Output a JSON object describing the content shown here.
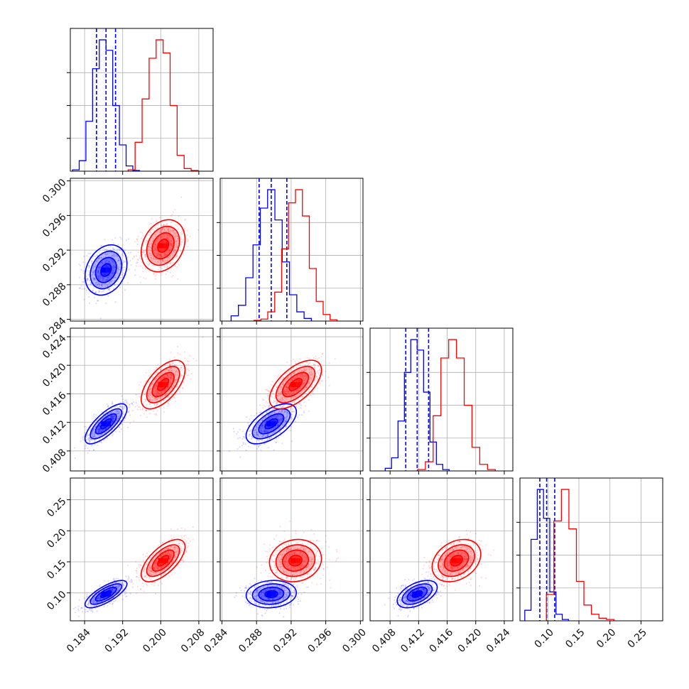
{
  "colors": {
    "blue": "#0000ff",
    "red": "#ff0000",
    "grid": "#b0b0b0",
    "frame": "#000000"
  },
  "chart_data": {
    "type": "corner",
    "parameters": [
      {
        "range": [
          0.181,
          0.211
        ],
        "ticks": [
          "0.184",
          "0.192",
          "0.200",
          "0.208"
        ]
      },
      {
        "range": [
          0.2838,
          0.3003
        ],
        "ticks": [
          "0.284",
          "0.288",
          "0.292",
          "0.296",
          "0.300"
        ]
      },
      {
        "range": [
          0.4052,
          0.4252
        ],
        "ticks": [
          "0.408",
          "0.412",
          "0.416",
          "0.420",
          "0.424"
        ]
      },
      {
        "range": [
          0.055,
          0.285
        ],
        "ticks": [
          "0.10",
          "0.15",
          "0.20",
          "0.25"
        ]
      }
    ],
    "y_axis_ticks": {
      "1": [
        "0.284",
        "0.288",
        "0.292",
        "0.296",
        "0.300"
      ],
      "2": [
        "0.408",
        "0.412",
        "0.416",
        "0.420",
        "0.424"
      ],
      "3": [
        "0.10",
        "0.15",
        "0.20",
        "0.25"
      ]
    },
    "series": [
      {
        "color": "blue",
        "means": [
          0.1885,
          0.2897,
          0.4118,
          0.098
        ],
        "stds": [
          0.0022,
          0.00145,
          0.0014,
          0.011
        ],
        "correlations": [
          [
            0,
            1,
            0.25
          ],
          [
            0,
            2,
            0.75
          ],
          [
            0,
            3,
            0.75
          ],
          [
            1,
            2,
            0.6
          ],
          [
            1,
            3,
            0.1
          ],
          [
            2,
            3,
            0.5
          ]
        ],
        "quantile_lines": {
          "0": [
            0.1865,
            0.1885,
            0.1905
          ],
          "1": [
            0.2883,
            0.2897,
            0.2915
          ],
          "2": [
            0.4102,
            0.4118,
            0.4134
          ],
          "3": [
            0.087,
            0.098,
            0.111
          ]
        },
        "histograms": {
          "0": [
            0.01,
            0.08,
            0.38,
            0.78,
            1.0,
            0.92,
            0.5,
            0.2,
            0.04,
            0.005
          ],
          "1": [
            0.04,
            0.12,
            0.33,
            0.58,
            0.86,
            1.0,
            0.77,
            0.45,
            0.2,
            0.07,
            0.02
          ],
          "2": [
            0.02,
            0.1,
            0.38,
            0.75,
            1.0,
            0.92,
            0.6,
            0.22,
            0.05,
            0.01
          ],
          "3": [
            0.08,
            0.62,
            1.0,
            0.78,
            0.22,
            0.05,
            0.01
          ]
        }
      },
      {
        "color": "red",
        "means": [
          0.2005,
          0.2925,
          0.4173,
          0.152
        ],
        "stds": [
          0.0023,
          0.0015,
          0.0017,
          0.017
        ],
        "correlations": [
          [
            0,
            1,
            0.25
          ],
          [
            0,
            2,
            0.6
          ],
          [
            0,
            3,
            0.65
          ],
          [
            1,
            2,
            0.6
          ],
          [
            1,
            3,
            0.1
          ],
          [
            2,
            3,
            0.3
          ]
        ],
        "quantile_lines": {},
        "histograms": {
          "0": [
            0.01,
            0.22,
            0.55,
            0.86,
            1.0,
            0.9,
            0.5,
            0.12,
            0.02,
            0.005
          ],
          "1": [
            0.005,
            0.015,
            0.07,
            0.22,
            0.55,
            0.9,
            1.0,
            0.8,
            0.4,
            0.15,
            0.05,
            0.01
          ],
          "2": [
            0.01,
            0.07,
            0.42,
            0.86,
            1.0,
            0.86,
            0.5,
            0.18,
            0.05,
            0.01
          ],
          "3": [
            0.2,
            0.76,
            1.0,
            0.7,
            0.3,
            0.12,
            0.05,
            0.02,
            0.01
          ]
        }
      }
    ]
  }
}
